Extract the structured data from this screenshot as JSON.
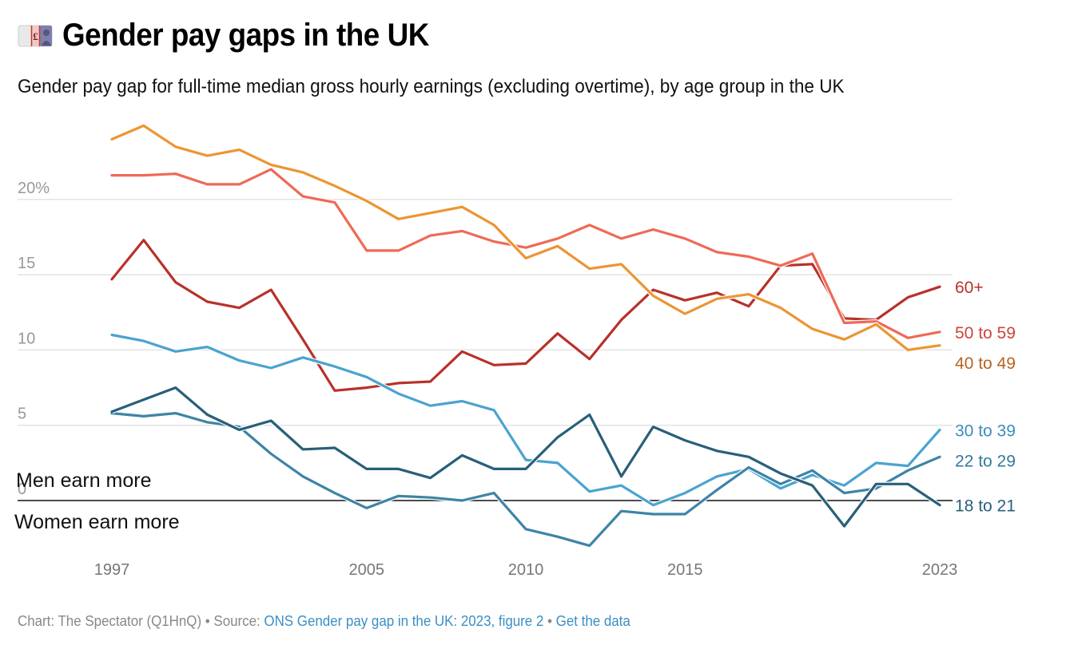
{
  "header": {
    "icon": "pound-banknote-icon",
    "title": "Gender pay gaps in the UK",
    "subtitle": "Gender pay gap for full-time median gross hourly earnings (excluding overtime), by age group in the UK"
  },
  "footer": {
    "credit": "Chart: The Spectator (Q1HnQ) • Source: ",
    "source_link": "ONS Gender pay gap in the UK: 2023, figure 2",
    "separator": " • ",
    "data_link": "Get the data"
  },
  "chart_data": {
    "type": "line",
    "title": "Gender pay gaps in the UK",
    "subtitle": "Gender pay gap for full-time median gross hourly earnings (excluding overtime), by age group in the UK",
    "xlabel": "",
    "ylabel": "",
    "x": [
      1997,
      1998,
      1999,
      2000,
      2001,
      2002,
      2003,
      2004,
      2005,
      2006,
      2007,
      2008,
      2009,
      2010,
      2011,
      2012,
      2013,
      2014,
      2015,
      2016,
      2017,
      2018,
      2019,
      2020,
      2021,
      2022,
      2023
    ],
    "xticks": [
      1997,
      2005,
      2010,
      2015,
      2023
    ],
    "xtick_labels": [
      "1997",
      "2005",
      "2010",
      "2015",
      "2023"
    ],
    "xlim": [
      1997,
      2023
    ],
    "yticks": [
      0,
      5,
      10,
      15,
      20
    ],
    "ytick_labels": [
      "0",
      "5",
      "10",
      "15",
      "20%"
    ],
    "ylim": [
      -3.5,
      25
    ],
    "grid": true,
    "legend": "direct labels at right end of lines",
    "annotations": [
      {
        "text": "Men earn more",
        "position": "above zero line"
      },
      {
        "text": "Women earn more",
        "position": "below zero line"
      }
    ],
    "series": [
      {
        "name": "60+",
        "color": "#b8312a",
        "label_color": "#b8312a",
        "values": [
          14.7,
          17.3,
          14.5,
          13.2,
          12.8,
          14.0,
          10.7,
          7.3,
          7.5,
          7.8,
          7.9,
          9.9,
          9.0,
          9.1,
          11.1,
          9.4,
          12.0,
          14.0,
          13.3,
          13.8,
          12.9,
          15.6,
          15.7,
          12.1,
          12.0,
          13.5,
          14.2
        ]
      },
      {
        "name": "50 to 59",
        "color": "#ee6a56",
        "label_color": "#cc4339",
        "values": [
          21.6,
          21.6,
          21.7,
          21.0,
          21.0,
          22.0,
          20.2,
          19.8,
          16.6,
          16.6,
          17.6,
          17.9,
          17.2,
          16.8,
          17.4,
          18.3,
          17.4,
          18.0,
          17.4,
          16.5,
          16.2,
          15.6,
          16.4,
          11.8,
          11.9,
          10.8,
          11.2
        ]
      },
      {
        "name": "40 to 49",
        "color": "#ec9532",
        "label_color": "#b66320",
        "values": [
          24.0,
          24.9,
          23.5,
          22.9,
          23.3,
          22.3,
          21.8,
          20.9,
          19.9,
          18.7,
          19.1,
          19.5,
          18.3,
          16.1,
          16.9,
          15.4,
          15.7,
          13.6,
          12.4,
          13.4,
          13.7,
          12.8,
          11.4,
          10.7,
          11.7,
          10.0,
          10.3
        ]
      },
      {
        "name": "30 to 39",
        "color": "#4aa3d0",
        "label_color": "#3b8dba",
        "values": [
          11.0,
          10.6,
          9.9,
          10.2,
          9.3,
          8.8,
          9.5,
          8.9,
          8.2,
          7.1,
          6.3,
          6.6,
          6.0,
          2.7,
          2.5,
          0.6,
          1.0,
          -0.3,
          0.5,
          1.6,
          2.1,
          0.8,
          1.7,
          1.0,
          2.5,
          2.3,
          4.7
        ]
      },
      {
        "name": "22 to 29",
        "color": "#3d84a6",
        "label_color": "#337a9c",
        "values": [
          5.8,
          5.6,
          5.8,
          5.2,
          4.9,
          3.1,
          1.6,
          0.5,
          -0.5,
          0.3,
          0.2,
          0.0,
          0.5,
          -1.9,
          -2.4,
          -3.0,
          -0.7,
          -0.9,
          -0.9,
          0.7,
          2.2,
          1.1,
          2.0,
          0.5,
          0.8,
          2.0,
          2.9
        ]
      },
      {
        "name": "18 to 21",
        "color": "#295f79",
        "label_color": "#295f79",
        "values": [
          5.9,
          6.7,
          7.5,
          5.7,
          4.7,
          5.3,
          3.4,
          3.5,
          2.1,
          2.1,
          1.5,
          3.0,
          2.1,
          2.1,
          4.2,
          5.7,
          1.6,
          4.9,
          4.0,
          3.3,
          2.9,
          1.8,
          1.0,
          -1.7,
          1.1,
          1.1,
          -0.3
        ]
      }
    ]
  }
}
